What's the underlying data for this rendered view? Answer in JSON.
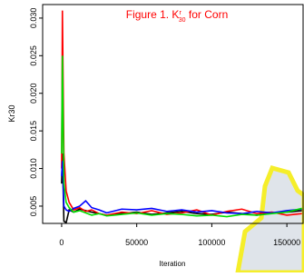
{
  "chart_data": {
    "type": "line",
    "title": "Figure 1.  K",
    "title_superscript": "r",
    "title_subscript": "30",
    "title_suffix": " for Corn",
    "xlabel": "Iteration",
    "ylabel": "Kr30",
    "x": [
      0,
      500,
      1500,
      3000,
      5000,
      8000,
      12000,
      16000,
      20000,
      25000,
      30000,
      40000,
      50000,
      60000,
      70000,
      80000,
      90000,
      100000,
      110000,
      120000,
      130000,
      140000,
      150000,
      160000
    ],
    "series": [
      {
        "color": "#000000",
        "values": [
          0.008,
          0.012,
          0.003,
          0.0028,
          0.0045,
          0.0042,
          0.0046,
          0.0044,
          0.0042,
          0.004,
          0.0038,
          0.004,
          0.0042,
          0.0039,
          0.0041,
          0.0043,
          0.004,
          0.0039,
          0.0042,
          0.004,
          0.0038,
          0.0041,
          0.0042,
          0.0044
        ]
      },
      {
        "color": "#ff0000",
        "values": [
          0.01,
          0.031,
          0.012,
          0.007,
          0.0055,
          0.0045,
          0.0048,
          0.0043,
          0.0045,
          0.004,
          0.0038,
          0.0042,
          0.004,
          0.0044,
          0.0039,
          0.0041,
          0.0045,
          0.0038,
          0.0043,
          0.0046,
          0.004,
          0.0042,
          0.0038,
          0.004
        ]
      },
      {
        "color": "#0000ff",
        "values": [
          0.009,
          0.011,
          0.005,
          0.0045,
          0.0043,
          0.0047,
          0.005,
          0.0057,
          0.0048,
          0.0045,
          0.0041,
          0.0046,
          0.0045,
          0.0047,
          0.0043,
          0.0045,
          0.0042,
          0.0044,
          0.0041,
          0.004,
          0.0043,
          0.0041,
          0.0044,
          0.0046
        ]
      },
      {
        "color": "#00dd00",
        "values": [
          0.012,
          0.025,
          0.008,
          0.0055,
          0.0048,
          0.0042,
          0.0044,
          0.0041,
          0.0038,
          0.004,
          0.0037,
          0.0039,
          0.0041,
          0.0038,
          0.004,
          0.0039,
          0.0037,
          0.0038,
          0.0036,
          0.0039,
          0.0038,
          0.004,
          0.0042,
          0.0047
        ]
      }
    ],
    "xlim": [
      -12650,
      160800
    ],
    "ylim": [
      0.0027,
      0.0318
    ],
    "xticks": [
      0,
      50000,
      100000,
      150000
    ],
    "yticks": [
      0.005,
      {
        "value": 0.01,
        "label": "0.010"
      },
      0.015,
      {
        "value": 0.02,
        "label": "0.020"
      },
      0.025,
      {
        "value": 0.03,
        "label": "0.030"
      }
    ],
    "title_color": "#ff0000"
  }
}
